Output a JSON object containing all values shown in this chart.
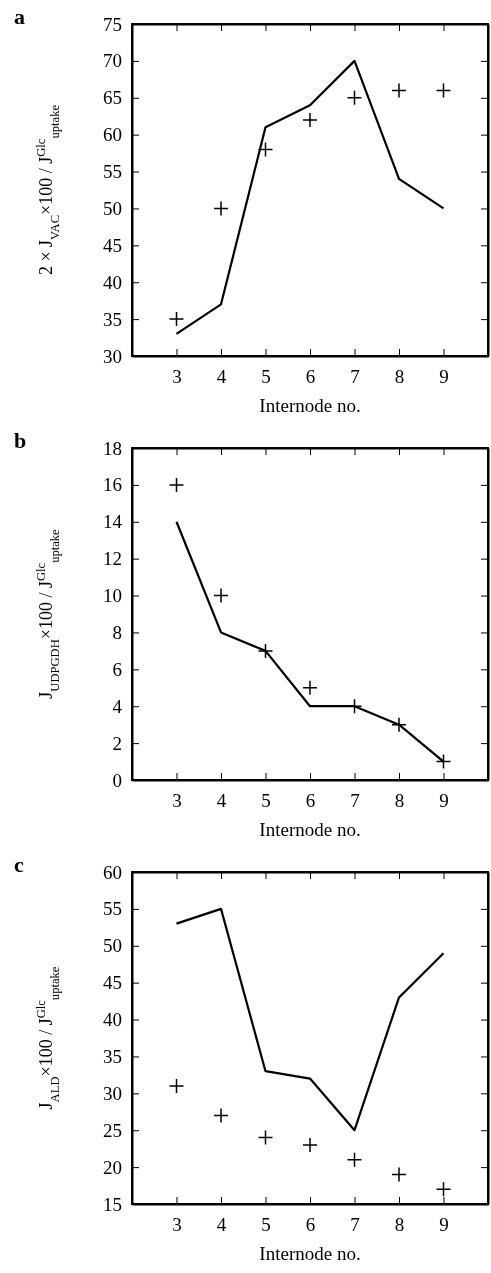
{
  "chart_data": [
    {
      "type": "line",
      "title": "a",
      "xlabel": "Internode no.",
      "ylabel": "2 × J$_{VAC}$×100 / J$^{Glc}$$_{uptake}$",
      "xlim": [
        2,
        10
      ],
      "xticks": [
        3,
        4,
        5,
        6,
        7,
        8,
        9
      ],
      "ylim": [
        30,
        75
      ],
      "yticks": [
        30,
        35,
        40,
        45,
        50,
        55,
        60,
        65,
        70,
        75
      ],
      "grid": false,
      "series": [
        {
          "color": "#000000",
          "line_style": "solid",
          "marker": "none",
          "x": [
            3,
            4,
            5,
            6,
            7,
            8,
            9
          ],
          "values": [
            33,
            37,
            61,
            64,
            70,
            54,
            50
          ]
        },
        {
          "type": "scatter",
          "color": "#000000",
          "marker": "cross",
          "x": [
            3,
            4,
            5,
            6,
            7,
            8,
            9
          ],
          "values": [
            35,
            50,
            58,
            62,
            65,
            66,
            66
          ]
        }
      ]
    },
    {
      "type": "line",
      "title": "b",
      "xlabel": "Internode no.",
      "ylabel": "J$_{UDPGDH}$×100 / J$^{Glc}$$_{uptake}$",
      "xlim": [
        2,
        10
      ],
      "xticks": [
        3,
        4,
        5,
        6,
        7,
        8,
        9
      ],
      "ylim": [
        0,
        18
      ],
      "yticks": [
        0,
        2,
        4,
        6,
        8,
        10,
        12,
        14,
        16,
        18
      ],
      "grid": false,
      "series": [
        {
          "color": "#000000",
          "line_style": "solid",
          "marker": "none",
          "x": [
            3,
            4,
            5,
            6,
            7,
            8,
            9
          ],
          "values": [
            14,
            8,
            7,
            4,
            4,
            3,
            1
          ]
        },
        {
          "type": "scatter",
          "color": "#000000",
          "marker": "cross",
          "x": [
            3,
            4,
            5,
            6,
            7,
            8,
            9
          ],
          "values": [
            16,
            10,
            7,
            5,
            4,
            3,
            1
          ]
        }
      ]
    },
    {
      "type": "line",
      "title": "c",
      "xlabel": "Internode no.",
      "ylabel": "J$_{ALD}$×100 / J$^{Glc}$$_{uptake}$",
      "xlim": [
        2,
        10
      ],
      "xticks": [
        3,
        4,
        5,
        6,
        7,
        8,
        9
      ],
      "ylim": [
        15,
        60
      ],
      "yticks": [
        15,
        20,
        25,
        30,
        35,
        40,
        45,
        50,
        55,
        60
      ],
      "grid": false,
      "series": [
        {
          "color": "#000000",
          "line_style": "solid",
          "marker": "none",
          "x": [
            3,
            4,
            5,
            6,
            7,
            8,
            9
          ],
          "values": [
            53,
            55,
            33,
            32,
            25,
            43,
            49
          ]
        },
        {
          "type": "scatter",
          "color": "#000000",
          "marker": "cross",
          "x": [
            3,
            4,
            5,
            6,
            7,
            8,
            9
          ],
          "values": [
            31,
            27,
            24,
            23,
            21,
            19,
            17
          ]
        }
      ]
    }
  ]
}
